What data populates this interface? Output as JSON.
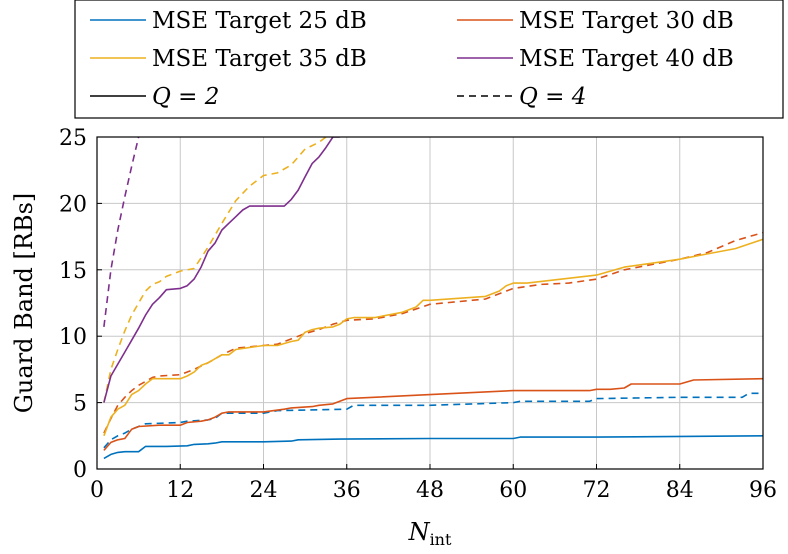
{
  "chart_data": {
    "type": "line",
    "xlabel": "N",
    "xlabel_sub": "int",
    "ylabel": "Guard Band [RBs]",
    "xlim": [
      0,
      96
    ],
    "ylim": [
      0,
      25
    ],
    "xticks": [
      0,
      12,
      24,
      36,
      48,
      60,
      72,
      84,
      96
    ],
    "yticks": [
      0,
      5,
      10,
      15,
      20,
      25
    ],
    "grid": true,
    "legend_position": "top, above plot",
    "legend": [
      {
        "label": "MSE Target 25 dB",
        "color": "#0072bd",
        "style": "solid"
      },
      {
        "label": "MSE Target 30 dB",
        "color": "#d95319",
        "style": "solid"
      },
      {
        "label": "MSE Target 35 dB",
        "color": "#edb120",
        "style": "solid"
      },
      {
        "label": "MSE Target 40 dB",
        "color": "#7e2f8e",
        "style": "solid"
      },
      {
        "label": "Q = 2",
        "color": "#000000",
        "style": "solid"
      },
      {
        "label": "Q = 4",
        "color": "#000000",
        "style": "dashed"
      }
    ],
    "series": [
      {
        "name": "MSE Target 25 dB, Q = 2",
        "color": "#0072bd",
        "dash": false,
        "x": [
          1,
          2,
          3,
          4,
          6,
          7,
          10,
          13,
          14,
          16,
          17,
          18,
          24,
          28,
          29,
          35,
          48,
          60,
          61,
          72,
          96
        ],
        "y": [
          0.8,
          1.1,
          1.25,
          1.3,
          1.3,
          1.7,
          1.7,
          1.75,
          1.85,
          1.9,
          1.95,
          2.05,
          2.05,
          2.1,
          2.2,
          2.25,
          2.3,
          2.3,
          2.4,
          2.4,
          2.5
        ]
      },
      {
        "name": "MSE Target 25 dB, Q = 4",
        "color": "#0072bd",
        "dash": true,
        "x": [
          1,
          2,
          3,
          4,
          5,
          6,
          7,
          12,
          13,
          16,
          17,
          18,
          24,
          25,
          26,
          36,
          37,
          48,
          60,
          61,
          71,
          72,
          84,
          93,
          94,
          96
        ],
        "y": [
          1.6,
          2.2,
          2.5,
          2.7,
          3.0,
          3.2,
          3.4,
          3.5,
          3.6,
          3.7,
          3.8,
          4.2,
          4.2,
          4.3,
          4.4,
          4.5,
          4.8,
          4.8,
          5.0,
          5.1,
          5.1,
          5.3,
          5.4,
          5.4,
          5.7,
          5.7
        ]
      },
      {
        "name": "MSE Target 30 dB, Q = 2",
        "color": "#d95319",
        "dash": false,
        "x": [
          1,
          2,
          3,
          4,
          5,
          6,
          9,
          12,
          13,
          15,
          16,
          17,
          18,
          19,
          24,
          27,
          28,
          31,
          32,
          34,
          35,
          36,
          48,
          60,
          71,
          72,
          74,
          76,
          77,
          84,
          86,
          96
        ],
        "y": [
          1.4,
          2.0,
          2.2,
          2.3,
          3.0,
          3.2,
          3.3,
          3.3,
          3.5,
          3.6,
          3.7,
          3.9,
          4.2,
          4.3,
          4.3,
          4.5,
          4.6,
          4.7,
          4.8,
          4.9,
          5.1,
          5.3,
          5.6,
          5.9,
          5.9,
          6.0,
          6.0,
          6.1,
          6.4,
          6.4,
          6.7,
          6.8
        ]
      },
      {
        "name": "MSE Target 30 dB, Q = 4",
        "color": "#d95319",
        "dash": true,
        "x": [
          1,
          2,
          3,
          4,
          5,
          6,
          7,
          8,
          9,
          12,
          14,
          16,
          18,
          20,
          24,
          26,
          28,
          30,
          32,
          34,
          36,
          40,
          44,
          48,
          52,
          56,
          60,
          64,
          68,
          72,
          76,
          80,
          84,
          88,
          92,
          96
        ],
        "y": [
          2.7,
          3.8,
          4.8,
          5.4,
          5.9,
          6.3,
          6.6,
          6.9,
          7.0,
          7.1,
          7.5,
          8.0,
          8.6,
          9.1,
          9.3,
          9.4,
          9.8,
          10.2,
          10.5,
          10.9,
          11.2,
          11.3,
          11.7,
          12.4,
          12.6,
          12.8,
          13.6,
          13.9,
          14.0,
          14.3,
          15.0,
          15.4,
          15.8,
          16.3,
          17.2,
          17.8
        ]
      },
      {
        "name": "MSE Target 35 dB, Q = 2",
        "color": "#edb120",
        "dash": false,
        "x": [
          1,
          2,
          3,
          4,
          5,
          6,
          7,
          8,
          9,
          10,
          12,
          13,
          14,
          15,
          16,
          17,
          18,
          19,
          20,
          24,
          26,
          28,
          29,
          30,
          31,
          32,
          34,
          35,
          36,
          37,
          40,
          44,
          46,
          47,
          48,
          56,
          58,
          59,
          60,
          61,
          62,
          72,
          76,
          80,
          84,
          88,
          92,
          96
        ],
        "y": [
          2.5,
          3.9,
          4.5,
          4.8,
          5.6,
          5.9,
          6.4,
          6.8,
          6.8,
          6.8,
          6.8,
          7.0,
          7.3,
          7.8,
          8.0,
          8.3,
          8.6,
          8.6,
          9.0,
          9.3,
          9.3,
          9.6,
          9.7,
          10.3,
          10.5,
          10.6,
          10.7,
          10.9,
          11.3,
          11.4,
          11.4,
          11.8,
          12.2,
          12.7,
          12.7,
          13.0,
          13.4,
          13.8,
          14.0,
          14.0,
          14.0,
          14.6,
          15.2,
          15.5,
          15.8,
          16.2,
          16.6,
          17.3
        ]
      },
      {
        "name": "MSE Target 35 dB, Q = 4",
        "color": "#edb120",
        "dash": true,
        "x": [
          1,
          2,
          3,
          4,
          5,
          6,
          7,
          8,
          9,
          10,
          12,
          14,
          16,
          18,
          20,
          22,
          24,
          26,
          28,
          30,
          32,
          33
        ],
        "y": [
          5.0,
          7.5,
          9.0,
          10.4,
          11.6,
          12.5,
          13.4,
          13.9,
          14.1,
          14.5,
          14.9,
          15.1,
          16.7,
          18.5,
          20.2,
          21.3,
          22.1,
          22.3,
          22.9,
          24.1,
          24.6,
          25.0
        ]
      },
      {
        "name": "MSE Target 40 dB, Q = 2",
        "color": "#7e2f8e",
        "dash": false,
        "x": [
          1,
          2,
          3,
          4,
          5,
          6,
          7,
          8,
          9,
          10,
          12,
          13,
          14,
          15,
          16,
          17,
          18,
          19,
          20,
          21,
          22,
          24,
          27,
          28,
          29,
          30,
          31,
          32,
          33,
          34,
          35
        ],
        "y": [
          5.0,
          7.0,
          7.9,
          8.8,
          9.7,
          10.6,
          11.6,
          12.4,
          12.9,
          13.5,
          13.6,
          13.8,
          14.3,
          15.2,
          16.4,
          17.0,
          18.0,
          18.5,
          19.0,
          19.5,
          19.8,
          19.8,
          19.8,
          20.3,
          21.0,
          22.0,
          23.0,
          23.5,
          24.2,
          25.0,
          25.0
        ]
      },
      {
        "name": "MSE Target 40 dB, Q = 4",
        "color": "#7e2f8e",
        "dash": true,
        "x": [
          1,
          2,
          3,
          4,
          5,
          6
        ],
        "y": [
          10.7,
          15.0,
          18.0,
          20.5,
          22.8,
          25.0
        ]
      }
    ]
  }
}
